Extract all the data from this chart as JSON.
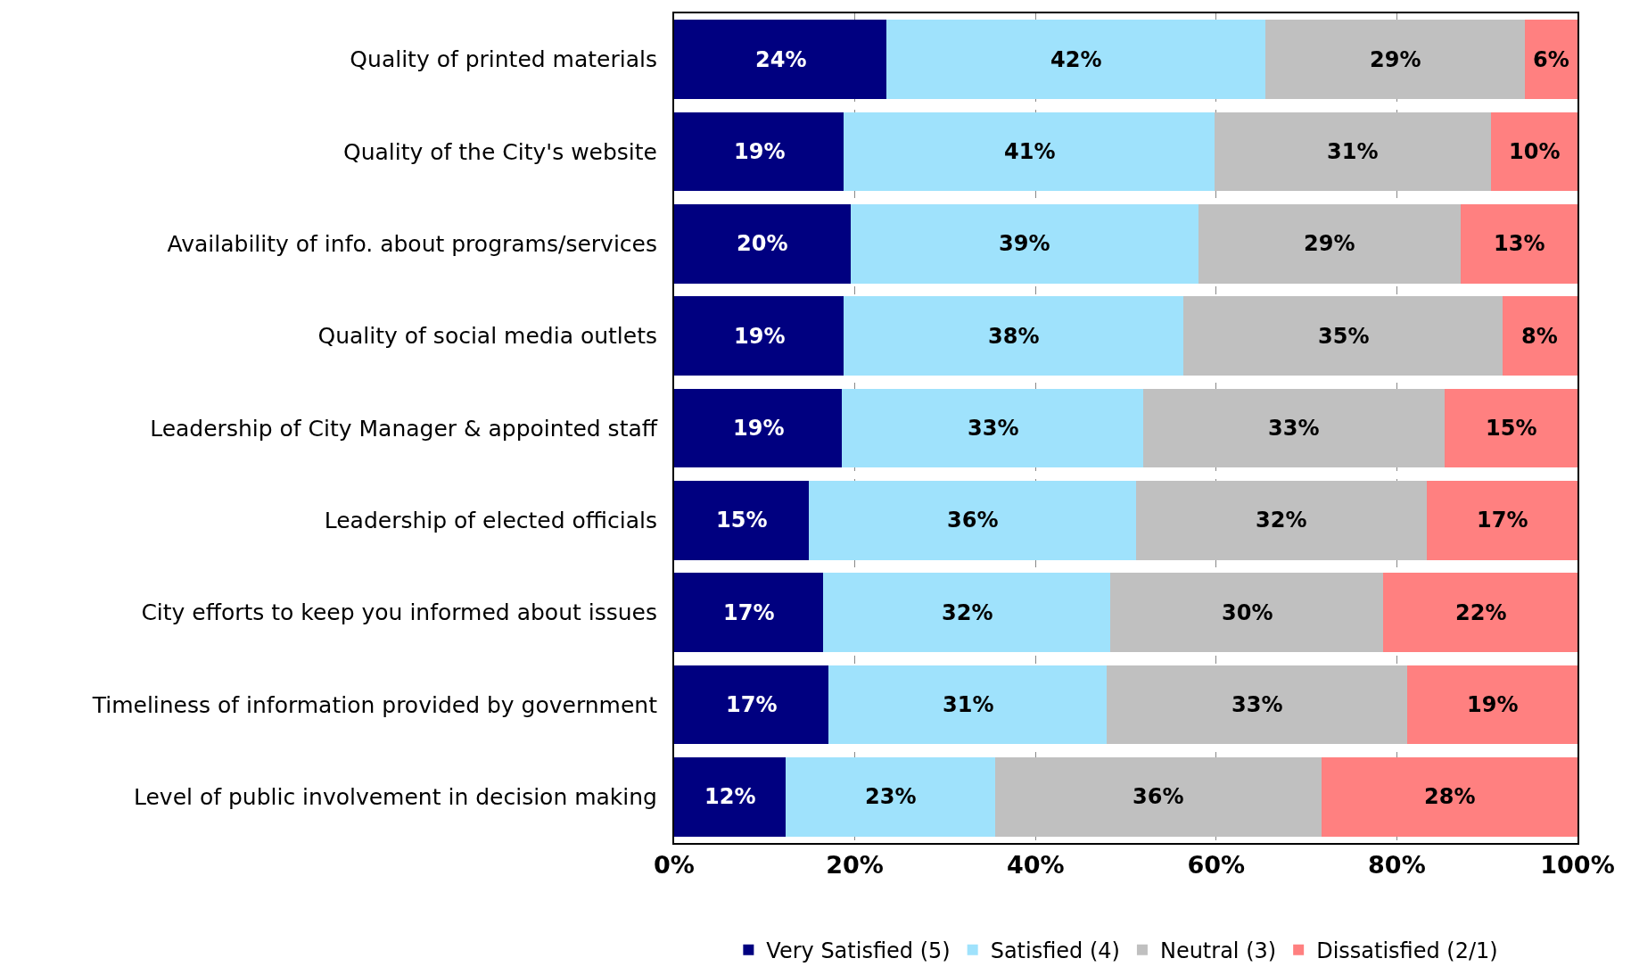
{
  "chart_data": {
    "type": "bar",
    "orientation": "horizontal",
    "stacked": true,
    "categories": [
      "Quality of printed materials",
      "Quality of the City's website",
      "Availability of info. about programs/services",
      "Quality of social media outlets",
      "Leadership of City Manager & appointed staff",
      "Leadership of elected officials",
      "City efforts to keep you informed about issues",
      "Timeliness of information provided by government",
      "Level of public involvement in decision making"
    ],
    "series": [
      {
        "name": "Very Satisfied (5)",
        "color": "#000080",
        "values": [
          23.5,
          18.8,
          19.5,
          18.8,
          18.6,
          14.9,
          16.5,
          17.1,
          12.3
        ],
        "value_labels": [
          "24%",
          "19%",
          "20%",
          "19%",
          "19%",
          "15%",
          "17%",
          "17%",
          "12%"
        ]
      },
      {
        "name": "Satisfied (4)",
        "color": "#9fe2fc",
        "values": [
          41.9,
          41.0,
          38.5,
          37.6,
          33.3,
          36.2,
          31.8,
          30.8,
          23.2
        ],
        "value_labels": [
          "42%",
          "41%",
          "39%",
          "38%",
          "33%",
          "36%",
          "32%",
          "31%",
          "23%"
        ]
      },
      {
        "name": "Neutral (3)",
        "color": "#c0c0c0",
        "values": [
          28.8,
          30.6,
          29.1,
          35.3,
          33.4,
          32.2,
          30.2,
          33.2,
          36.2
        ],
        "value_labels": [
          "29%",
          "31%",
          "29%",
          "35%",
          "33%",
          "32%",
          "30%",
          "33%",
          "36%"
        ]
      },
      {
        "name": "Dissatisfied (2/1)",
        "color": "#ff8080",
        "values": [
          5.8,
          9.6,
          12.9,
          8.3,
          14.7,
          16.7,
          21.5,
          18.9,
          28.3
        ],
        "value_labels": [
          "6%",
          "10%",
          "13%",
          "8%",
          "15%",
          "17%",
          "22%",
          "19%",
          "28%"
        ]
      }
    ],
    "xlim": [
      0,
      100
    ],
    "xticks": [
      {
        "value": 0,
        "label": "0%"
      },
      {
        "value": 20,
        "label": "20%"
      },
      {
        "value": 40,
        "label": "40%"
      },
      {
        "value": 60,
        "label": "60%"
      },
      {
        "value": 80,
        "label": "80%"
      },
      {
        "value": 100,
        "label": "100%"
      }
    ],
    "grid": "x",
    "legend": "bottom"
  }
}
